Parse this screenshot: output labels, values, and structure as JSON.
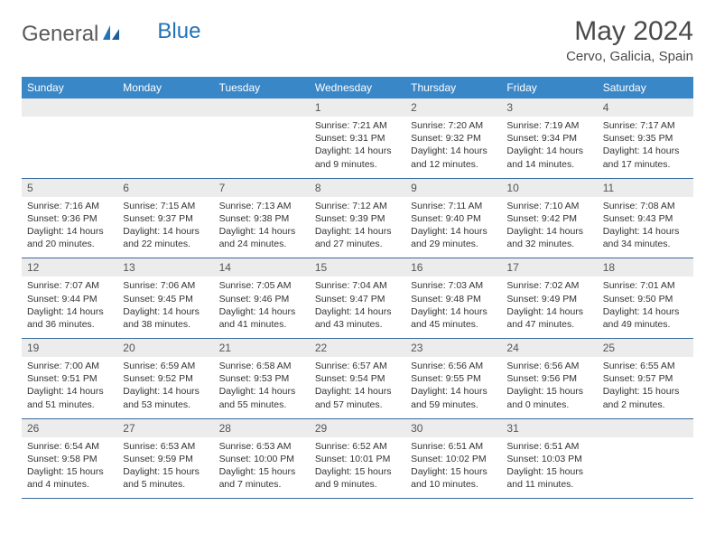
{
  "brand": {
    "part1": "General",
    "part2": "Blue"
  },
  "title": "May 2024",
  "location": "Cervo, Galicia, Spain",
  "colors": {
    "header_bg": "#3a87c8",
    "header_text": "#ffffff",
    "daynum_bg": "#ececec",
    "row_border": "#3a6a9a",
    "logo_gray": "#5a5a5a",
    "logo_blue": "#2472b8"
  },
  "daynames": [
    "Sunday",
    "Monday",
    "Tuesday",
    "Wednesday",
    "Thursday",
    "Friday",
    "Saturday"
  ],
  "weeks": [
    [
      null,
      null,
      null,
      {
        "n": "1",
        "sr": "7:21 AM",
        "ss": "9:31 PM",
        "dl": "14 hours and 9 minutes."
      },
      {
        "n": "2",
        "sr": "7:20 AM",
        "ss": "9:32 PM",
        "dl": "14 hours and 12 minutes."
      },
      {
        "n": "3",
        "sr": "7:19 AM",
        "ss": "9:34 PM",
        "dl": "14 hours and 14 minutes."
      },
      {
        "n": "4",
        "sr": "7:17 AM",
        "ss": "9:35 PM",
        "dl": "14 hours and 17 minutes."
      }
    ],
    [
      {
        "n": "5",
        "sr": "7:16 AM",
        "ss": "9:36 PM",
        "dl": "14 hours and 20 minutes."
      },
      {
        "n": "6",
        "sr": "7:15 AM",
        "ss": "9:37 PM",
        "dl": "14 hours and 22 minutes."
      },
      {
        "n": "7",
        "sr": "7:13 AM",
        "ss": "9:38 PM",
        "dl": "14 hours and 24 minutes."
      },
      {
        "n": "8",
        "sr": "7:12 AM",
        "ss": "9:39 PM",
        "dl": "14 hours and 27 minutes."
      },
      {
        "n": "9",
        "sr": "7:11 AM",
        "ss": "9:40 PM",
        "dl": "14 hours and 29 minutes."
      },
      {
        "n": "10",
        "sr": "7:10 AM",
        "ss": "9:42 PM",
        "dl": "14 hours and 32 minutes."
      },
      {
        "n": "11",
        "sr": "7:08 AM",
        "ss": "9:43 PM",
        "dl": "14 hours and 34 minutes."
      }
    ],
    [
      {
        "n": "12",
        "sr": "7:07 AM",
        "ss": "9:44 PM",
        "dl": "14 hours and 36 minutes."
      },
      {
        "n": "13",
        "sr": "7:06 AM",
        "ss": "9:45 PM",
        "dl": "14 hours and 38 minutes."
      },
      {
        "n": "14",
        "sr": "7:05 AM",
        "ss": "9:46 PM",
        "dl": "14 hours and 41 minutes."
      },
      {
        "n": "15",
        "sr": "7:04 AM",
        "ss": "9:47 PM",
        "dl": "14 hours and 43 minutes."
      },
      {
        "n": "16",
        "sr": "7:03 AM",
        "ss": "9:48 PM",
        "dl": "14 hours and 45 minutes."
      },
      {
        "n": "17",
        "sr": "7:02 AM",
        "ss": "9:49 PM",
        "dl": "14 hours and 47 minutes."
      },
      {
        "n": "18",
        "sr": "7:01 AM",
        "ss": "9:50 PM",
        "dl": "14 hours and 49 minutes."
      }
    ],
    [
      {
        "n": "19",
        "sr": "7:00 AM",
        "ss": "9:51 PM",
        "dl": "14 hours and 51 minutes."
      },
      {
        "n": "20",
        "sr": "6:59 AM",
        "ss": "9:52 PM",
        "dl": "14 hours and 53 minutes."
      },
      {
        "n": "21",
        "sr": "6:58 AM",
        "ss": "9:53 PM",
        "dl": "14 hours and 55 minutes."
      },
      {
        "n": "22",
        "sr": "6:57 AM",
        "ss": "9:54 PM",
        "dl": "14 hours and 57 minutes."
      },
      {
        "n": "23",
        "sr": "6:56 AM",
        "ss": "9:55 PM",
        "dl": "14 hours and 59 minutes."
      },
      {
        "n": "24",
        "sr": "6:56 AM",
        "ss": "9:56 PM",
        "dl": "15 hours and 0 minutes."
      },
      {
        "n": "25",
        "sr": "6:55 AM",
        "ss": "9:57 PM",
        "dl": "15 hours and 2 minutes."
      }
    ],
    [
      {
        "n": "26",
        "sr": "6:54 AM",
        "ss": "9:58 PM",
        "dl": "15 hours and 4 minutes."
      },
      {
        "n": "27",
        "sr": "6:53 AM",
        "ss": "9:59 PM",
        "dl": "15 hours and 5 minutes."
      },
      {
        "n": "28",
        "sr": "6:53 AM",
        "ss": "10:00 PM",
        "dl": "15 hours and 7 minutes."
      },
      {
        "n": "29",
        "sr": "6:52 AM",
        "ss": "10:01 PM",
        "dl": "15 hours and 9 minutes."
      },
      {
        "n": "30",
        "sr": "6:51 AM",
        "ss": "10:02 PM",
        "dl": "15 hours and 10 minutes."
      },
      {
        "n": "31",
        "sr": "6:51 AM",
        "ss": "10:03 PM",
        "dl": "15 hours and 11 minutes."
      },
      null
    ]
  ],
  "labels": {
    "sunrise": "Sunrise:",
    "sunset": "Sunset:",
    "daylight": "Daylight:"
  }
}
